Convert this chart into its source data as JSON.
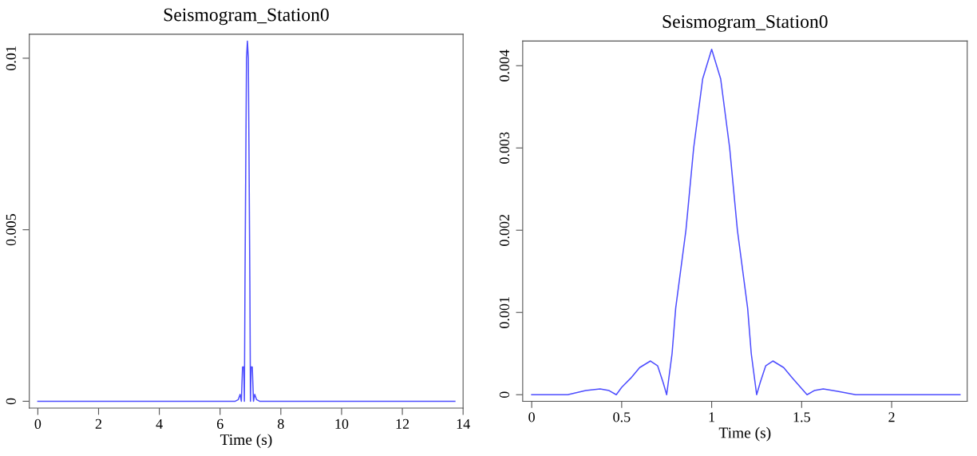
{
  "chart_data": [
    {
      "type": "line",
      "title": "Seismogram_Station0",
      "xlabel": "Time (s)",
      "xlim": [
        -0.28,
        14
      ],
      "xticks": [
        0,
        2,
        4,
        6,
        8,
        10,
        12,
        14
      ],
      "ylim": [
        -0.0002,
        0.0107
      ],
      "yticks": [
        0,
        0.005,
        0.01
      ],
      "grid": false,
      "legend": false,
      "series": [
        {
          "color": "#4d4dff",
          "x": [
            0,
            6.5,
            6.6,
            6.66,
            6.7,
            6.72,
            6.74,
            6.78,
            6.8,
            6.82,
            6.85,
            6.87,
            6.9,
            6.93,
            6.95,
            6.98,
            7.0,
            7.02,
            7.06,
            7.08,
            7.1,
            7.14,
            7.2,
            7.3,
            13.73
          ],
          "values": [
            0,
            0,
            5e-05,
            0.0002,
            0,
            0.0005,
            0.001,
            0.001,
            0,
            0.0035,
            0.0075,
            0.01,
            0.0105,
            0.01,
            0.0075,
            0.0035,
            0,
            0.001,
            0.001,
            0.0005,
            0,
            0.0002,
            5e-05,
            0,
            0
          ]
        }
      ]
    },
    {
      "type": "line",
      "title": "Seismogram_Station0",
      "xlabel": "Time (s)",
      "xlim": [
        -0.05,
        2.42
      ],
      "xticks": [
        0,
        0.5,
        1,
        1.5,
        2
      ],
      "ylim": [
        -8e-05,
        0.0043
      ],
      "yticks": [
        0,
        0.001,
        0.002,
        0.003,
        0.004
      ],
      "grid": false,
      "legend": false,
      "series": [
        {
          "color": "#4d4dff",
          "x": [
            0,
            0.2,
            0.3,
            0.38,
            0.43,
            0.47,
            0.5,
            0.55,
            0.6,
            0.66,
            0.7,
            0.73,
            0.75,
            0.78,
            0.8,
            0.857,
            0.9,
            0.95,
            1,
            1.05,
            1.1,
            1.143,
            1.2,
            1.22,
            1.25,
            1.27,
            1.3,
            1.34,
            1.4,
            1.45,
            1.53,
            1.57,
            1.62,
            1.7,
            1.8,
            2.38
          ],
          "values": [
            0,
            0,
            5e-05,
            7e-05,
            5e-05,
            0,
            9e-05,
            0.0002,
            0.00033,
            0.00041,
            0.00035,
            0.00015,
            0,
            0.0005,
            0.00105,
            0.002,
            0.003,
            0.00384,
            0.0042,
            0.00384,
            0.003,
            0.002,
            0.00105,
            0.0005,
            0,
            0.00015,
            0.00035,
            0.00041,
            0.00033,
            0.0002,
            0,
            5e-05,
            7e-05,
            4e-05,
            0,
            0
          ]
        }
      ]
    }
  ]
}
